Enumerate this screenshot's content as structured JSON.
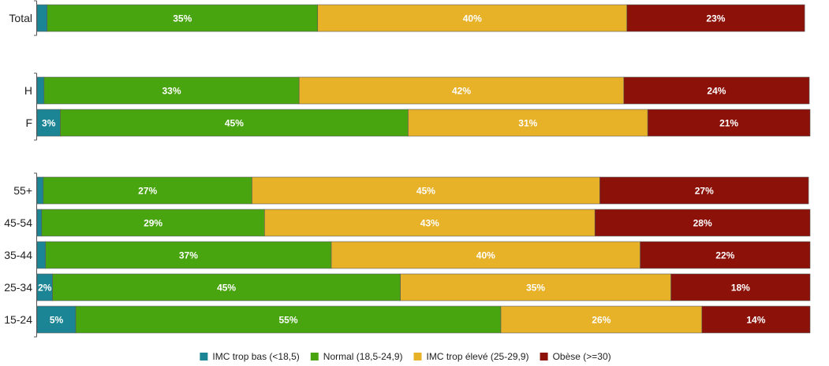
{
  "chart_data": {
    "type": "bar",
    "orientation": "horizontal",
    "stacked": true,
    "title": "",
    "xlabel": "",
    "ylabel": "",
    "xlim": [
      0,
      100
    ],
    "grid": false,
    "legend_position": "bottom",
    "series": [
      {
        "name": "IMC trop bas (<18,5)",
        "color": "#1b8596"
      },
      {
        "name": "Normal (18,5-24,9)",
        "color": "#48a50f"
      },
      {
        "name": "IMC trop élevé (25-29,9)",
        "color": "#e7b128"
      },
      {
        "name": "Obèse (>=30)",
        "color": "#8b1109"
      }
    ],
    "groups": [
      {
        "rows": [
          {
            "category": "Total",
            "values": [
              1.3,
              35,
              40,
              23
            ],
            "labels": [
              "",
              "35%",
              "40%",
              "23%"
            ]
          }
        ]
      },
      {
        "rows": [
          {
            "category": "H",
            "values": [
              0.9,
              33,
              42,
              24
            ],
            "labels": [
              "",
              "33%",
              "42%",
              "24%"
            ]
          },
          {
            "category": "F",
            "values": [
              3,
              45,
              31,
              21
            ],
            "labels": [
              "3%",
              "45%",
              "31%",
              "21%"
            ]
          }
        ]
      },
      {
        "rows": [
          {
            "category": "55+",
            "values": [
              0.8,
              27,
              45,
              27
            ],
            "labels": [
              "",
              "27%",
              "45%",
              "27%"
            ]
          },
          {
            "category": "45-54",
            "values": [
              0.6,
              29,
              43,
              28
            ],
            "labels": [
              "",
              "29%",
              "43%",
              "28%"
            ]
          },
          {
            "category": "35-44",
            "values": [
              1.1,
              37,
              40,
              22
            ],
            "labels": [
              "",
              "37%",
              "40%",
              "22%"
            ]
          },
          {
            "category": "25-34",
            "values": [
              2,
              45,
              35,
              18
            ],
            "labels": [
              "2%",
              "45%",
              "35%",
              "18%"
            ]
          },
          {
            "category": "15-24",
            "values": [
              5,
              55,
              26,
              14
            ],
            "labels": [
              "5%",
              "55%",
              "26%",
              "14%"
            ]
          }
        ]
      }
    ]
  }
}
